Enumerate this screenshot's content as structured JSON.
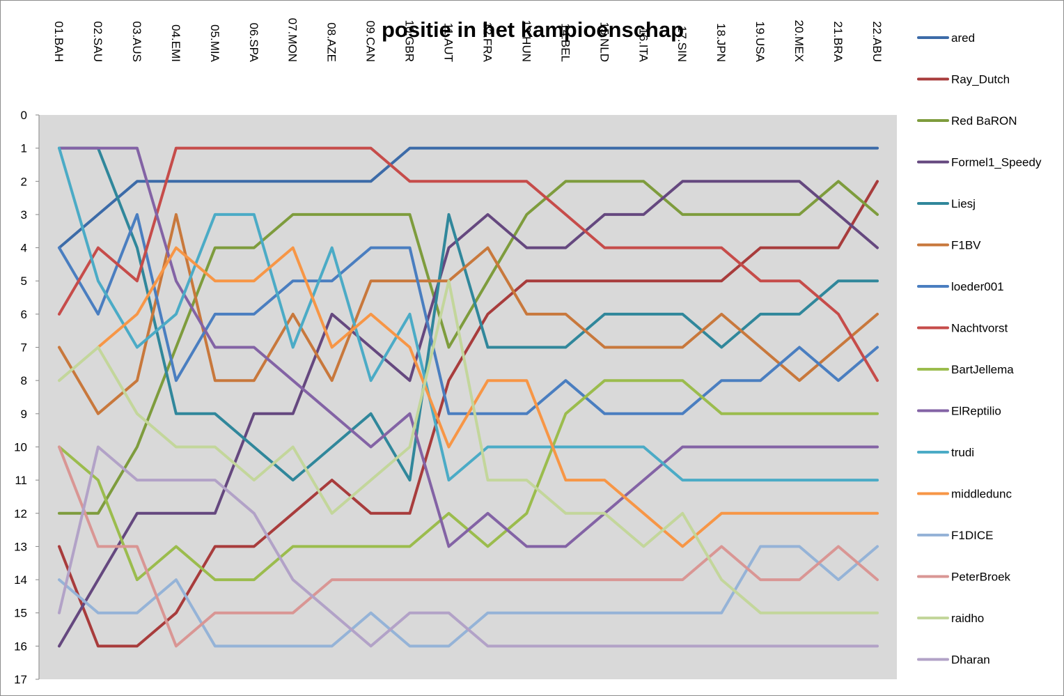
{
  "chart_data": {
    "type": "line",
    "title": "positie in het kampioenschap",
    "xlabel": "",
    "ylabel": "",
    "ylim": [
      0,
      17
    ],
    "y_inverted": true,
    "y_ticks": [
      "0",
      "1",
      "2",
      "3",
      "4",
      "5",
      "6",
      "7",
      "8",
      "9",
      "10",
      "11",
      "12",
      "13",
      "14",
      "15",
      "16",
      "17"
    ],
    "grid": false,
    "plot_background": "#d9d9d9",
    "legend_position": "right",
    "categories": [
      "01.BAH",
      "02.SAU",
      "03.AUS",
      "04.EMI",
      "05.MIA",
      "06.SPA",
      "07.MON",
      "08.AZE",
      "09.CAN",
      "10.GBR",
      "11.AUT",
      "12.FRA",
      "13.HUN",
      "14.BEL",
      "15.NLD",
      "16.ITA",
      "17.SIN",
      "18.JPN",
      "19.USA",
      "20.MEX",
      "21.BRA",
      "22.ABU"
    ],
    "series": [
      {
        "name": "ared",
        "color": "#3c6ba8",
        "values": [
          4,
          3,
          2,
          2,
          2,
          2,
          2,
          2,
          2,
          1,
          1,
          1,
          1,
          1,
          1,
          1,
          1,
          1,
          1,
          1,
          1,
          1
        ]
      },
      {
        "name": "Ray_Dutch",
        "color": "#a83c3c",
        "values": [
          13,
          16,
          16,
          15,
          13,
          13,
          12,
          11,
          12,
          12,
          8,
          6,
          5,
          5,
          5,
          5,
          5,
          5,
          4,
          4,
          4,
          2
        ]
      },
      {
        "name": "Red BaRON",
        "color": "#7e9c3d",
        "values": [
          12,
          12,
          10,
          7,
          4,
          4,
          3,
          3,
          3,
          3,
          7,
          5,
          3,
          2,
          2,
          2,
          3,
          3,
          3,
          3,
          2,
          3
        ]
      },
      {
        "name": "Formel1_Speedy",
        "color": "#65487f",
        "values": [
          16,
          14,
          12,
          12,
          12,
          9,
          9,
          6,
          7,
          8,
          4,
          3,
          4,
          4,
          3,
          3,
          2,
          2,
          2,
          2,
          3,
          4
        ]
      },
      {
        "name": "Liesj",
        "color": "#30879b",
        "values": [
          1,
          1,
          4,
          9,
          9,
          10,
          11,
          10,
          9,
          11,
          3,
          7,
          7,
          7,
          6,
          6,
          6,
          7,
          6,
          6,
          5,
          5
        ]
      },
      {
        "name": "F1BV",
        "color": "#c8783c",
        "values": [
          7,
          9,
          8,
          3,
          8,
          8,
          6,
          8,
          5,
          5,
          5,
          4,
          6,
          6,
          7,
          7,
          7,
          6,
          7,
          8,
          7,
          6
        ]
      },
      {
        "name": "loeder001",
        "color": "#4a7ec0",
        "values": [
          4,
          6,
          3,
          8,
          6,
          6,
          5,
          5,
          4,
          4,
          9,
          9,
          9,
          8,
          9,
          9,
          9,
          8,
          8,
          7,
          8,
          7
        ]
      },
      {
        "name": "Nachtvorst",
        "color": "#c64c4a",
        "values": [
          6,
          4,
          5,
          1,
          1,
          1,
          1,
          1,
          1,
          2,
          2,
          2,
          2,
          3,
          4,
          4,
          4,
          4,
          5,
          5,
          6,
          8
        ]
      },
      {
        "name": "BartJellema",
        "color": "#9bbc4d",
        "values": [
          10,
          11,
          14,
          13,
          14,
          14,
          13,
          13,
          13,
          13,
          12,
          13,
          12,
          9,
          8,
          8,
          8,
          9,
          9,
          9,
          9,
          9
        ]
      },
      {
        "name": "ElReptilio",
        "color": "#8363a5",
        "values": [
          1,
          1,
          1,
          5,
          7,
          7,
          8,
          9,
          10,
          9,
          13,
          12,
          13,
          13,
          12,
          11,
          10,
          10,
          10,
          10,
          10,
          10
        ]
      },
      {
        "name": "trudi",
        "color": "#4babc6",
        "values": [
          1,
          5,
          7,
          6,
          3,
          3,
          7,
          4,
          8,
          6,
          11,
          10,
          10,
          10,
          10,
          10,
          11,
          11,
          11,
          11,
          11,
          11
        ]
      },
      {
        "name": "middledunc",
        "color": "#f79646",
        "values": [
          null,
          7,
          6,
          4,
          5,
          5,
          4,
          7,
          6,
          7,
          10,
          8,
          8,
          11,
          11,
          12,
          13,
          12,
          12,
          12,
          12,
          12
        ]
      },
      {
        "name": "F1DICE",
        "color": "#95b3d7",
        "values": [
          14,
          15,
          15,
          14,
          16,
          16,
          16,
          16,
          15,
          16,
          16,
          15,
          15,
          15,
          15,
          15,
          15,
          15,
          13,
          13,
          14,
          13
        ]
      },
      {
        "name": "PeterBroek",
        "color": "#d99694",
        "values": [
          10,
          13,
          13,
          16,
          15,
          15,
          15,
          14,
          14,
          14,
          14,
          14,
          14,
          14,
          14,
          14,
          14,
          13,
          14,
          14,
          13,
          14
        ]
      },
      {
        "name": "raidho",
        "color": "#c3d69b",
        "values": [
          8,
          7,
          9,
          10,
          10,
          11,
          10,
          12,
          11,
          10,
          5,
          11,
          11,
          12,
          12,
          13,
          12,
          14,
          15,
          15,
          15,
          15
        ]
      },
      {
        "name": "Dharan",
        "color": "#b2a2c7",
        "values": [
          15,
          10,
          11,
          11,
          11,
          12,
          14,
          15,
          16,
          15,
          15,
          16,
          16,
          16,
          16,
          16,
          16,
          16,
          16,
          16,
          16,
          16
        ]
      }
    ]
  }
}
